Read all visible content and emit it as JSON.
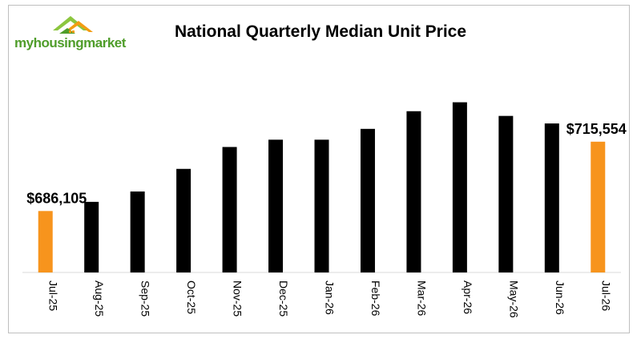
{
  "logo": {
    "text": "myhousingmarket",
    "tagline": ""
  },
  "chart_data": {
    "type": "bar",
    "title": "National Quarterly Median Unit Price",
    "categories": [
      "Jul-25",
      "Aug-25",
      "Sep-25",
      "Oct-25",
      "Nov-25",
      "Dec-25",
      "Jan-26",
      "Feb-26",
      "Mar-26",
      "Apr-26",
      "May-26",
      "Jun-26",
      "Jul-26"
    ],
    "values": [
      686105,
      690000,
      694400,
      704000,
      713300,
      716400,
      716400,
      721000,
      728500,
      732300,
      726500,
      723300,
      715554
    ],
    "bar_colors": [
      "#f7941d",
      "#000000",
      "#000000",
      "#000000",
      "#000000",
      "#000000",
      "#000000",
      "#000000",
      "#000000",
      "#000000",
      "#000000",
      "#000000",
      "#f7941d"
    ],
    "data_labels": [
      {
        "index": 0,
        "text": "$686,105"
      },
      {
        "index": 12,
        "text": "$715,554"
      }
    ],
    "xlabel": "",
    "ylabel": "",
    "ylim": [
      660000,
      740000
    ],
    "grid": false,
    "legend": "none"
  },
  "colors": {
    "highlight": "#f7941d",
    "bar": "#000000",
    "brand_green": "#4f9d2a",
    "brand_orange": "#f39c12"
  }
}
